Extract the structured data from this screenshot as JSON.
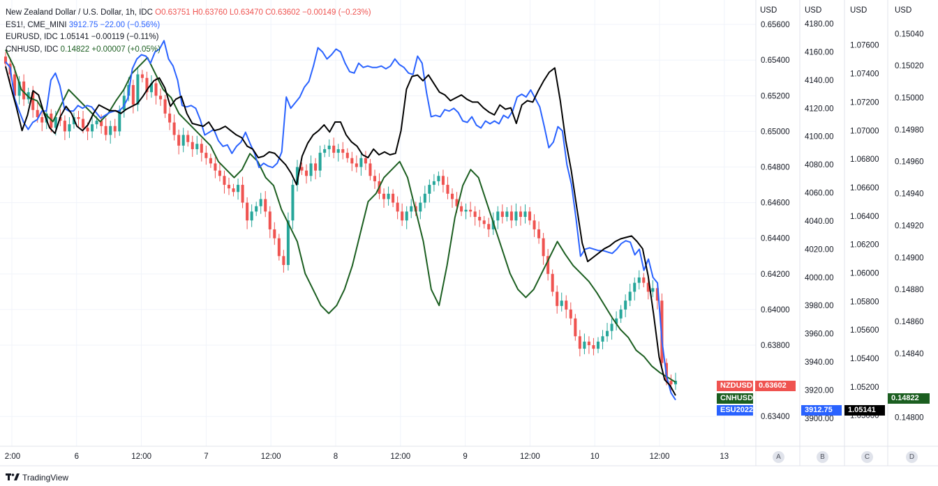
{
  "legend": {
    "main_name": "New Zealand Dollar / U.S. Dollar, 1h, IDC",
    "main_values": "O0.63751 H0.63760 L0.63470 C0.63602 −0.00149 (−0.23%)",
    "es_name": "ES1!, CME_MINI",
    "es_values": "3912.75 −22.00 (−0.56%)",
    "eur_name": "EURUSD, IDC",
    "eur_values": "1.05141 −0.00119 (−0.11%)",
    "cnh_name": "CNHUSD, IDC",
    "cnh_values": "0.14822 +0.00007 (+0.05%)"
  },
  "axes": {
    "unit_a": "USD",
    "unit_b": "USD",
    "unit_c": "USD",
    "unit_d": "USD",
    "pane_a": "A",
    "pane_b": "B",
    "pane_c": "C",
    "pane_d": "D"
  },
  "tags": {
    "nzd_label": "NZDUSD",
    "nzd_value": "0.63602",
    "cnh_label": "CNHUSD",
    "cnh_value": "0.14822",
    "es_label": "ESU2022",
    "es_value": "3912.75",
    "eur_value": "1.05141"
  },
  "colors": {
    "up": "#26a69a",
    "down": "#ef5350",
    "es": "#2962ff",
    "eur": "#000000",
    "cnh": "#1b5e20",
    "grid": "#f0f3fa"
  },
  "footer": {
    "brand": "TradingView",
    "logo": "tradingview-logo-icon"
  },
  "chart_data": {
    "type": "line",
    "title": "New Zealand Dollar / U.S. Dollar, 1h, IDC",
    "x_tick_labels": [
      "2:00",
      "6",
      "12:00",
      "7",
      "12:00",
      "8",
      "12:00",
      "9",
      "12:00",
      "10",
      "12:00",
      "13"
    ],
    "y_axes": {
      "A": {
        "unit": "USD",
        "ticks": [
          "0.65600",
          "0.65400",
          "0.65200",
          "0.65000",
          "0.64800",
          "0.64600",
          "0.64400",
          "0.64200",
          "0.64000",
          "0.63800",
          "0.63400"
        ],
        "range": [
          0.6335,
          0.6562
        ]
      },
      "B": {
        "unit": "USD",
        "ticks": [
          "4180.00",
          "4160.00",
          "4140.00",
          "4120.00",
          "4100.00",
          "4080.00",
          "4060.00",
          "4040.00",
          "4020.00",
          "4000.00",
          "3980.00",
          "3960.00",
          "3940.00",
          "3920.00",
          "3900.00"
        ],
        "range": [
          3895,
          4182
        ]
      },
      "C": {
        "unit": "USD",
        "ticks": [
          "1.07600",
          "1.07400",
          "1.07200",
          "1.07000",
          "1.06800",
          "1.06600",
          "1.06400",
          "1.06200",
          "1.06000",
          "1.05800",
          "1.05600",
          "1.05400",
          "1.05200",
          "1.05000"
        ],
        "range": [
          1.0493,
          1.0777
        ]
      },
      "D": {
        "unit": "USD",
        "ticks": [
          "0.15040",
          "0.15020",
          "0.15000",
          "0.14980",
          "0.14960",
          "0.14940",
          "0.14920",
          "0.14900",
          "0.14880",
          "0.14860",
          "0.14840",
          "0.14800"
        ],
        "range": [
          0.14795,
          0.15048
        ]
      }
    },
    "candles_close": [
      0.6538,
      0.6532,
      0.652,
      0.6528,
      0.6518,
      0.6522,
      0.6512,
      0.6508,
      0.6505,
      0.651,
      0.6502,
      0.6508,
      0.6506,
      0.65,
      0.6504,
      0.6508,
      0.6507,
      0.6502,
      0.65,
      0.6504,
      0.6506,
      0.6503,
      0.6498,
      0.6503,
      0.65,
      0.6512,
      0.652,
      0.6526,
      0.6515,
      0.6532,
      0.653,
      0.6522,
      0.6527,
      0.652,
      0.6518,
      0.651,
      0.6505,
      0.6498,
      0.6492,
      0.6498,
      0.6494,
      0.649,
      0.6493,
      0.6488,
      0.6485,
      0.6482,
      0.6478,
      0.6475,
      0.647,
      0.6468,
      0.6466,
      0.647,
      0.646,
      0.645,
      0.6455,
      0.6458,
      0.6462,
      0.6455,
      0.6445,
      0.644,
      0.643,
      0.6425,
      0.645,
      0.647,
      0.648,
      0.6478,
      0.6475,
      0.6482,
      0.6478,
      0.6488,
      0.649,
      0.6492,
      0.6488,
      0.649,
      0.6488,
      0.6485,
      0.6482,
      0.648,
      0.6485,
      0.6482,
      0.6475,
      0.6472,
      0.6465,
      0.6462,
      0.6465,
      0.646,
      0.6455,
      0.645,
      0.6455,
      0.6458,
      0.6455,
      0.646,
      0.6465,
      0.647,
      0.6472,
      0.6475,
      0.647,
      0.6465,
      0.6462,
      0.6458,
      0.6455,
      0.6456,
      0.6455,
      0.6452,
      0.645,
      0.6448,
      0.6445,
      0.645,
      0.6455,
      0.6452,
      0.6455,
      0.645,
      0.6455,
      0.6452,
      0.6455,
      0.645,
      0.6445,
      0.644,
      0.643,
      0.642,
      0.641,
      0.6402,
      0.6405,
      0.64,
      0.6395,
      0.6385,
      0.6378,
      0.6382,
      0.638,
      0.6378,
      0.6382,
      0.6385,
      0.6388,
      0.6392,
      0.6395,
      0.64,
      0.6405,
      0.641,
      0.6415,
      0.6418,
      0.6415,
      0.641,
      0.6412,
      0.6405,
      0.637,
      0.636,
      0.6358,
      0.636
    ],
    "series": [
      {
        "name": "ES1!, CME_MINI",
        "axis": "B",
        "last": 3912.75
      },
      {
        "name": "EURUSD, IDC",
        "axis": "C",
        "last": 1.05141
      },
      {
        "name": "CNHUSD, IDC",
        "axis": "D",
        "last": 0.14822
      }
    ],
    "es_values": [
      4153,
      4149,
      4127,
      4118,
      4110,
      4105,
      4110,
      4112,
      4118,
      4118,
      4140,
      4145,
      4136,
      4120,
      4118,
      4118,
      4122,
      4120,
      4122,
      4121,
      4117,
      4113,
      4115,
      4117,
      4118,
      4118,
      4121,
      4127,
      4148,
      4155,
      4158,
      4157,
      4152,
      4160,
      4162,
      4168,
      4155,
      4150,
      4140,
      4122,
      4121,
      4122,
      4120,
      4112,
      4101,
      4103,
      4105,
      4097,
      4093,
      4094,
      4088,
      4093,
      4096,
      4103,
      4095,
      4088,
      4078,
      4081,
      4079,
      4078,
      4081,
      4089,
      4128,
      4120,
      4124,
      4128,
      4135,
      4139,
      4150,
      4163,
      4160,
      4155,
      4158,
      4162,
      4160,
      4152,
      4146,
      4145,
      4152,
      4149,
      4150,
      4149,
      4149,
      4150,
      4148,
      4150,
      4155,
      4151,
      4149,
      4145,
      4144,
      4157,
      4152,
      4131,
      4114,
      4115,
      4114,
      4119,
      4118,
      4120,
      4117,
      4111,
      4110,
      4114,
      4108,
      4106,
      4111,
      4109,
      4111,
      4109,
      4115,
      4113,
      4118,
      4128,
      4130,
      4128,
      4133,
      4127,
      4121,
      4107,
      4092,
      4096,
      4107,
      4104,
      4080,
      4066,
      4042,
      4015,
      4020,
      4021,
      4020,
      4019,
      4019,
      4018,
      4017,
      4020,
      4024,
      4026,
      4025,
      4016,
      4020,
      4005,
      4013,
      4000,
      3996,
      3955,
      3930,
      3918,
      3913
    ],
    "eur_values": [
      1.0745,
      1.073,
      1.0716,
      1.07,
      1.0711,
      1.0728,
      1.0725,
      1.0712,
      1.0702,
      1.0698,
      1.071,
      1.0717,
      1.0712,
      1.0703,
      1.07,
      1.0704,
      1.0712,
      1.0718,
      1.0716,
      1.0714,
      1.0714,
      1.0712,
      1.0715,
      1.0717,
      1.0719,
      1.0724,
      1.073,
      1.0735,
      1.0737,
      1.073,
      1.0717,
      1.0722,
      1.0724,
      1.0712,
      1.0705,
      1.0704,
      1.0703,
      1.0706,
      1.07,
      1.0701,
      1.0703,
      1.07,
      1.0697,
      1.0695,
      1.0689,
      1.0687,
      1.0681,
      1.0682,
      1.0685,
      1.0684,
      1.068,
      1.0676,
      1.067,
      1.0662,
      1.0682,
      1.0691,
      1.0697,
      1.07,
      1.0704,
      1.0699,
      1.0706,
      1.0706,
      1.0697,
      1.0692,
      1.0689,
      1.0683,
      1.0681,
      1.0687,
      1.0683,
      1.0685,
      1.0683,
      1.0684,
      1.07,
      1.0729,
      1.0738,
      1.0739,
      1.0735,
      1.0739,
      1.0733,
      1.0727,
      1.0725,
      1.0721,
      1.0723,
      1.0725,
      1.0722,
      1.072,
      1.072,
      1.0716,
      1.0713,
      1.0711,
      1.0718,
      1.0715,
      1.0716,
      1.0705,
      1.0718,
      1.0721,
      1.072,
      1.0728,
      1.0735,
      1.0741,
      1.0744,
      1.0721,
      1.0693,
      1.0672,
      1.0646,
      1.0621,
      1.0608,
      1.0611,
      1.0614,
      1.0617,
      1.0619,
      1.0622,
      1.0624,
      1.0625,
      1.0626,
      1.0622,
      1.0617,
      1.0598,
      1.0571,
      1.0541,
      1.0525,
      1.0521,
      1.0514
    ],
    "cnh_values": [
      0.1503,
      0.1502,
      0.15005,
      0.15,
      0.14998,
      0.1499,
      0.14985,
      0.14995,
      0.15005,
      0.15,
      0.14995,
      0.1499,
      0.14985,
      0.1499,
      0.14998,
      0.15005,
      0.15015,
      0.1502,
      0.15025,
      0.15015,
      0.15005,
      0.15,
      0.1499,
      0.14985,
      0.1498,
      0.14975,
      0.1497,
      0.1496,
      0.14955,
      0.1495,
      0.14955,
      0.14965,
      0.1496,
      0.1495,
      0.14945,
      0.1493,
      0.1492,
      0.1491,
      0.1489,
      0.1488,
      0.1487,
      0.14865,
      0.1487,
      0.1488,
      0.14895,
      0.14915,
      0.14935,
      0.1494,
      0.1495,
      0.14955,
      0.1496,
      0.1495,
      0.1493,
      0.1491,
      0.1488,
      0.1487,
      0.14895,
      0.14925,
      0.14945,
      0.14955,
      0.1495,
      0.14935,
      0.1492,
      0.14905,
      0.1489,
      0.1488,
      0.14875,
      0.1488,
      0.1489,
      0.149,
      0.1491,
      0.14902,
      0.14895,
      0.1489,
      0.14885,
      0.14878,
      0.1487,
      0.14862,
      0.14855,
      0.1485,
      0.14842,
      0.14838,
      0.14832,
      0.14828,
      0.14825,
      0.14822
    ]
  }
}
